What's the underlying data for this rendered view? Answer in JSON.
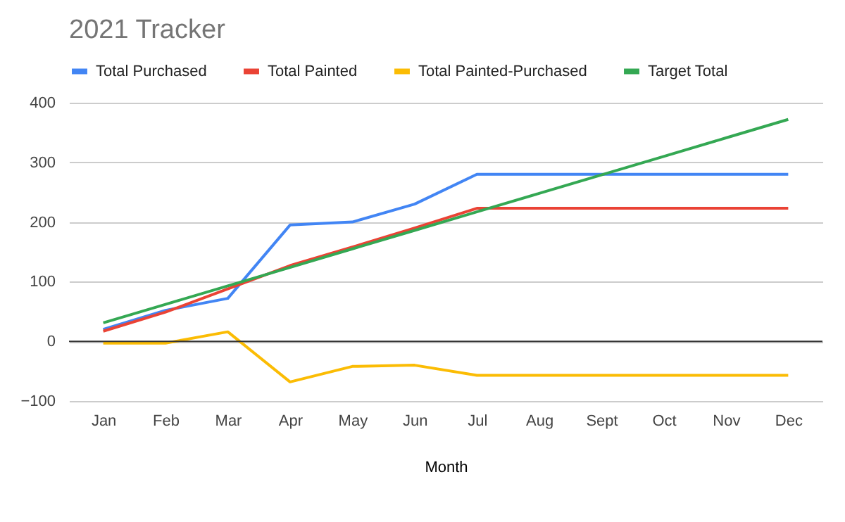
{
  "chart_data": {
    "type": "line",
    "title": "2021 Tracker",
    "xlabel": "Month",
    "categories": [
      "Jan",
      "Feb",
      "Mar",
      "Apr",
      "May",
      "Jun",
      "Jul",
      "Aug",
      "Sept",
      "Oct",
      "Nov",
      "Dec"
    ],
    "series": [
      {
        "name": "Total Purchased",
        "color": "#4285f4",
        "values": [
          20,
          52,
          72,
          195,
          200,
          230,
          280,
          280,
          280,
          280,
          280,
          280
        ]
      },
      {
        "name": "Total Painted",
        "color": "#ea4335",
        "values": [
          17,
          49,
          88,
          127,
          158,
          190,
          223,
          223,
          223,
          223,
          223,
          223
        ]
      },
      {
        "name": "Total Painted-Purchased",
        "color": "#fbbc04",
        "values": [
          -3,
          -3,
          16,
          -68,
          -42,
          -40,
          -57,
          -57,
          -57,
          -57,
          -57,
          -57
        ]
      },
      {
        "name": "Target Total",
        "color": "#34a853",
        "values": [
          31,
          62,
          93,
          124,
          155,
          186,
          217,
          248,
          279,
          310,
          341,
          372
        ]
      }
    ],
    "ylim": [
      -100,
      400
    ],
    "yticks": [
      -100,
      0,
      100,
      200,
      300,
      400
    ],
    "grid": "y",
    "legend": "top",
    "ref_lines": [
      {
        "axis": "y",
        "value": 0,
        "color": "#333333"
      }
    ]
  }
}
